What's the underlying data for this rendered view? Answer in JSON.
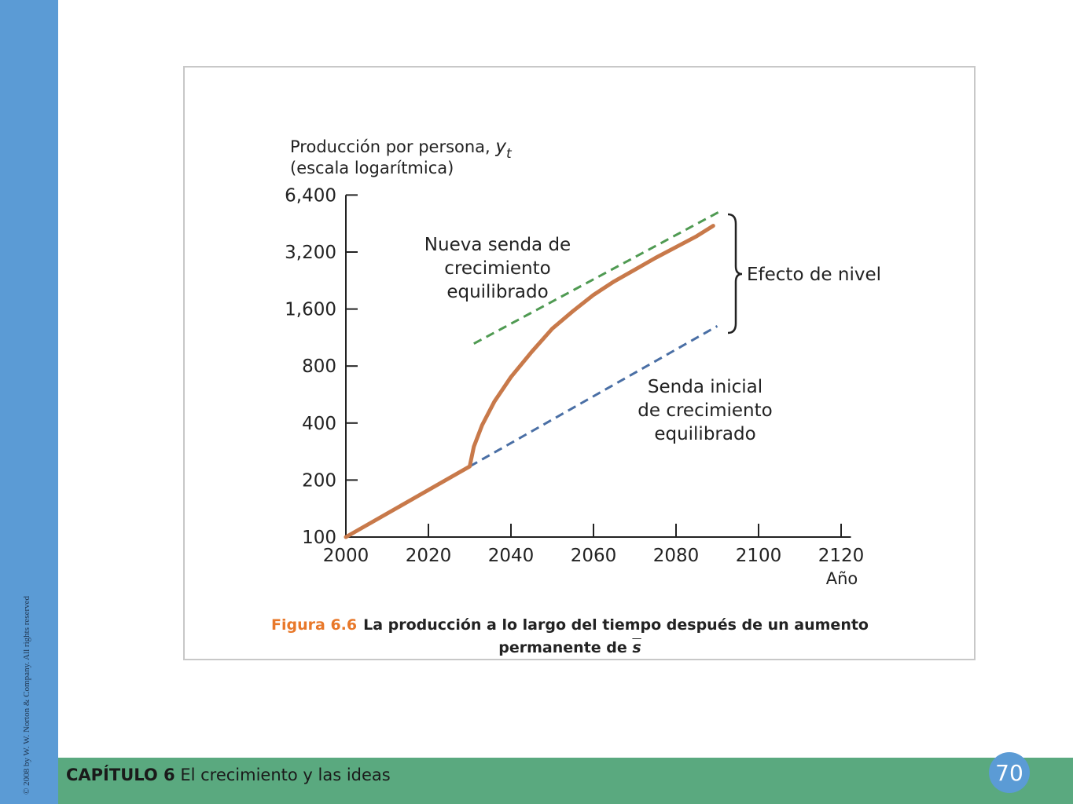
{
  "slide": {
    "copyright": "© 2008 by W. W. Norton & Company. All rights reserved",
    "chapter_label": "CAPÍTULO 6",
    "chapter_title": "El crecimiento y las ideas",
    "page_number": "70",
    "colors": {
      "left_bar": "#5b9bd5",
      "bottom_bar": "#5aa97f",
      "page_circle": "#5b9bd5",
      "caption_accent": "#e8782a"
    }
  },
  "caption": {
    "label": "Figura 6.6",
    "text_line1": "La producción a lo largo del tiempo después de un aumento",
    "text_line2": "permanente de",
    "symbol": "s"
  },
  "chart_data": {
    "type": "line",
    "y_scale": "log2",
    "ylabel_line1": "Producción por persona,",
    "ylabel_symbol": "y",
    "ylabel_subscript": "t",
    "ylabel_line2": "(escala logarítmica)",
    "xlabel": "Año",
    "x_ticks": [
      2000,
      2020,
      2040,
      2060,
      2080,
      2100,
      2120
    ],
    "x_tick_labels": [
      "2000",
      "2020",
      "2040",
      "2060",
      "2080",
      "2100",
      "2120"
    ],
    "y_ticks": [
      100,
      200,
      400,
      800,
      1600,
      3200,
      6400
    ],
    "y_tick_labels": [
      "100",
      "200",
      "400",
      "800",
      "1,600",
      "3,200",
      "6,400"
    ],
    "xlim": [
      2000,
      2122
    ],
    "ylim": [
      100,
      6400
    ],
    "series": [
      {
        "key": "actual",
        "color": "#c8794a",
        "style": "solid",
        "points": [
          [
            2000,
            100
          ],
          [
            2030,
            236
          ],
          [
            2031,
            300
          ],
          [
            2033,
            390
          ],
          [
            2036,
            520
          ],
          [
            2040,
            700
          ],
          [
            2045,
            950
          ],
          [
            2050,
            1260
          ],
          [
            2055,
            1560
          ],
          [
            2060,
            1900
          ],
          [
            2065,
            2240
          ],
          [
            2070,
            2580
          ],
          [
            2075,
            2980
          ],
          [
            2080,
            3400
          ],
          [
            2085,
            3880
          ],
          [
            2089,
            4400
          ]
        ]
      },
      {
        "key": "initial_path",
        "color": "#4a6fa5",
        "style": "dashed",
        "points": [
          [
            2030,
            236
          ],
          [
            2090,
            1300
          ]
        ]
      },
      {
        "key": "new_path",
        "color": "#4f9a52",
        "style": "dashed",
        "points": [
          [
            2031,
            1050
          ],
          [
            2091,
            5300
          ]
        ]
      }
    ],
    "annotations": {
      "new_path_line1": "Nueva senda de",
      "new_path_line2": "crecimiento",
      "new_path_line3": "equilibrado",
      "initial_path_line1": "Senda inicial",
      "initial_path_line2": "de crecimiento",
      "initial_path_line3": "equilibrado",
      "level_effect": "Efecto de nivel"
    }
  }
}
